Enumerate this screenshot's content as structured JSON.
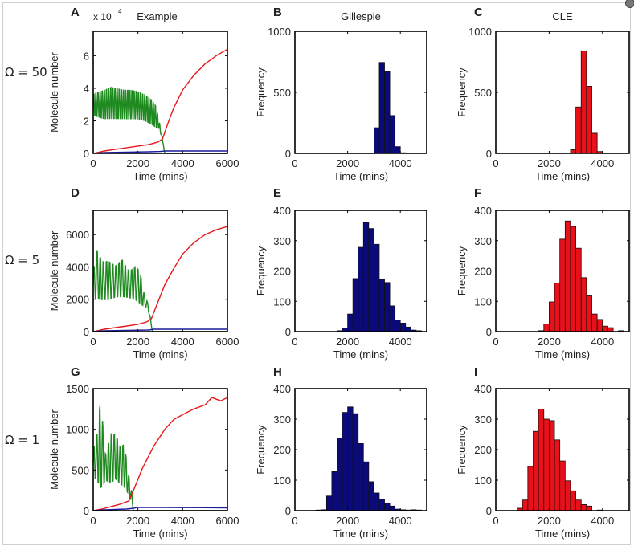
{
  "figure": {
    "row_labels": [
      "Ω = 50",
      "Ω = 5",
      "Ω = 1"
    ],
    "column_titles": [
      "Example",
      "Gillespie",
      "CLE"
    ],
    "colors": {
      "red": "#e41a1c",
      "green": "#1f8a1f",
      "blue": "#1a1a9c",
      "hist_blue": "#0a0a7a",
      "hist_red": "#e8111a"
    }
  },
  "chart_data": [
    {
      "panel": "A",
      "type": "line",
      "title": "Example",
      "multiplier_label": "x 10",
      "multiplier_exp": "4",
      "xlabel": "Time (mins)",
      "ylabel": "Molecule number",
      "xlim": [
        0,
        6000
      ],
      "ylim": [
        0,
        7.5
      ],
      "xticks": [
        0,
        2000,
        4000,
        6000
      ],
      "yticks": [
        0,
        2,
        4,
        6
      ],
      "xtick_labels": [
        "0",
        "2000",
        "4000",
        "6000"
      ],
      "ytick_labels": [
        "0",
        "2",
        "4",
        "6"
      ],
      "series": [
        {
          "name": "green",
          "color": "#1f8a1f",
          "kind": "oscillating",
          "x": [
            0,
            100,
            300,
            500,
            800,
            1100,
            1400,
            1700,
            2000,
            2300,
            2600,
            2800,
            2950,
            3100,
            3200,
            6000
          ],
          "upper": [
            3.7,
            3.8,
            3.9,
            4.0,
            4.2,
            4.1,
            4.0,
            4.0,
            3.9,
            3.7,
            3.4,
            3.0,
            2.0,
            0.8,
            0.0,
            0.0
          ],
          "lower": [
            2.3,
            2.2,
            2.1,
            2.0,
            2.0,
            2.0,
            2.0,
            2.0,
            2.0,
            1.9,
            1.7,
            1.5,
            1.5,
            0.8,
            0.0,
            0.0
          ],
          "period": 95
        },
        {
          "name": "red",
          "color": "#e41a1c",
          "x": [
            0,
            500,
            1000,
            1500,
            2000,
            2500,
            2900,
            3100,
            3300,
            3600,
            4000,
            4500,
            5000,
            5500,
            6000
          ],
          "y": [
            0.0,
            0.15,
            0.25,
            0.35,
            0.45,
            0.55,
            0.7,
            0.9,
            1.7,
            2.8,
            3.9,
            4.8,
            5.5,
            6.0,
            6.4
          ]
        },
        {
          "name": "blue",
          "color": "#1a1a9c",
          "x": [
            0,
            500,
            1500,
            2500,
            3000,
            3200,
            6000
          ],
          "y": [
            0.0,
            0.05,
            0.08,
            0.1,
            0.12,
            0.15,
            0.15
          ]
        }
      ]
    },
    {
      "panel": "B",
      "type": "bar",
      "title": "Gillespie",
      "xlabel": "Time (mins)",
      "ylabel": "Frequency",
      "xlim": [
        0,
        5000
      ],
      "ylim": [
        0,
        1000
      ],
      "xticks": [
        0,
        2000,
        4000
      ],
      "yticks": [
        0,
        500,
        1000
      ],
      "xtick_labels": [
        "0",
        "2000",
        "4000"
      ],
      "ytick_labels": [
        "0",
        "500",
        "1000"
      ],
      "bin_width": 200,
      "bin_start": 0,
      "values": [
        0,
        0,
        0,
        0,
        0,
        0,
        0,
        0,
        0,
        0,
        0,
        0,
        0,
        0,
        2,
        210,
        745,
        670,
        310,
        55,
        5,
        0,
        0,
        0,
        0
      ],
      "color": "#0a0a7a"
    },
    {
      "panel": "C",
      "type": "bar",
      "title": "CLE",
      "xlabel": "Time (mins)",
      "ylabel": "Frequency",
      "xlim": [
        0,
        5000
      ],
      "ylim": [
        0,
        1000
      ],
      "xticks": [
        0,
        2000,
        4000
      ],
      "yticks": [
        0,
        500,
        1000
      ],
      "xtick_labels": [
        "0",
        "2000",
        "4000"
      ],
      "ytick_labels": [
        "0",
        "500",
        "1000"
      ],
      "bin_width": 200,
      "bin_start": 0,
      "values": [
        0,
        0,
        0,
        0,
        0,
        0,
        0,
        0,
        0,
        0,
        0,
        0,
        0,
        0,
        30,
        380,
        840,
        550,
        165,
        15,
        0,
        0,
        0,
        0,
        0
      ],
      "color": "#e8111a"
    },
    {
      "panel": "D",
      "type": "line",
      "xlabel": "Time (mins)",
      "ylabel": "Molecule number",
      "xlim": [
        0,
        6000
      ],
      "ylim": [
        0,
        7500
      ],
      "xticks": [
        0,
        2000,
        4000,
        6000
      ],
      "yticks": [
        0,
        2000,
        4000,
        6000
      ],
      "xtick_labels": [
        "0",
        "2000",
        "4000",
        "6000"
      ],
      "ytick_labels": [
        "0",
        "2000",
        "4000",
        "6000"
      ],
      "series": [
        {
          "name": "green",
          "color": "#1f8a1f",
          "kind": "oscillating",
          "x": [
            0,
            150,
            400,
            700,
            1000,
            1300,
            1600,
            1900,
            2100,
            2300,
            2450,
            2650,
            6000
          ],
          "upper": [
            3700,
            5300,
            4500,
            4500,
            4200,
            4600,
            3800,
            4200,
            3800,
            2200,
            1800,
            0,
            0
          ],
          "lower": [
            2000,
            1800,
            1800,
            1800,
            2000,
            2000,
            2000,
            1800,
            1600,
            1500,
            1400,
            0,
            0
          ],
          "period": 140
        },
        {
          "name": "red",
          "color": "#e41a1c",
          "x": [
            0,
            500,
            1000,
            1500,
            2000,
            2400,
            2600,
            2800,
            3200,
            3600,
            4000,
            4500,
            5000,
            5500,
            6000
          ],
          "y": [
            0,
            150,
            250,
            350,
            450,
            600,
            800,
            1500,
            2900,
            3900,
            4800,
            5500,
            6000,
            6300,
            6500
          ]
        },
        {
          "name": "blue",
          "color": "#1a1a9c",
          "x": [
            0,
            500,
            1500,
            2500,
            2700,
            6000
          ],
          "y": [
            0,
            50,
            80,
            100,
            150,
            150
          ]
        }
      ]
    },
    {
      "panel": "E",
      "type": "bar",
      "xlabel": "Time (mins)",
      "ylabel": "Frequency",
      "xlim": [
        0,
        5000
      ],
      "ylim": [
        0,
        400
      ],
      "xticks": [
        0,
        2000,
        4000
      ],
      "yticks": [
        0,
        100,
        200,
        300,
        400
      ],
      "xtick_labels": [
        "0",
        "2000",
        "4000"
      ],
      "ytick_labels": [
        "0",
        "100",
        "200",
        "300",
        "400"
      ],
      "bin_width": 200,
      "bin_start": 0,
      "values": [
        0,
        0,
        0,
        0,
        0,
        0,
        0,
        0,
        3,
        12,
        58,
        175,
        278,
        360,
        340,
        288,
        172,
        162,
        85,
        38,
        28,
        15,
        5,
        3,
        0
      ],
      "color": "#0a0a7a"
    },
    {
      "panel": "F",
      "type": "bar",
      "xlabel": "Time (mins)",
      "ylabel": "Frequency",
      "xlim": [
        0,
        5000
      ],
      "ylim": [
        0,
        400
      ],
      "xticks": [
        0,
        2000,
        4000
      ],
      "yticks": [
        0,
        100,
        200,
        300,
        400
      ],
      "xtick_labels": [
        "0",
        "2000",
        "4000"
      ],
      "ytick_labels": [
        "0",
        "100",
        "200",
        "300",
        "400"
      ],
      "bin_width": 200,
      "bin_start": 0,
      "values": [
        0,
        0,
        0,
        0,
        0,
        0,
        0,
        0,
        3,
        25,
        98,
        160,
        305,
        365,
        347,
        275,
        178,
        118,
        58,
        40,
        18,
        13,
        0,
        3,
        0
      ],
      "color": "#e8111a"
    },
    {
      "panel": "G",
      "type": "line",
      "xlabel": "Time (mins)",
      "ylabel": "Molecule number",
      "xlim": [
        0,
        6000
      ],
      "ylim": [
        0,
        1500
      ],
      "xticks": [
        0,
        2000,
        4000,
        6000
      ],
      "yticks": [
        0,
        500,
        1000,
        1500
      ],
      "xtick_labels": [
        "0",
        "2000",
        "4000",
        "6000"
      ],
      "ytick_labels": [
        "0",
        "500",
        "1000",
        "1500"
      ],
      "series": [
        {
          "name": "green",
          "color": "#1f8a1f",
          "kind": "oscillating",
          "x": [
            0,
            150,
            330,
            550,
            800,
            1000,
            1200,
            1400,
            1550,
            1700,
            1800,
            6000
          ],
          "upper": [
            780,
            920,
            1440,
            700,
            990,
            980,
            820,
            850,
            500,
            300,
            0,
            0
          ],
          "lower": [
            380,
            350,
            200,
            350,
            300,
            350,
            300,
            250,
            200,
            100,
            0,
            0
          ],
          "period": 130
        },
        {
          "name": "red",
          "color": "#e41a1c",
          "x": [
            0,
            400,
            800,
            1200,
            1600,
            1800,
            2200,
            2700,
            3200,
            3600,
            4000,
            4500,
            5000,
            5300,
            5700,
            6000
          ],
          "y": [
            0,
            20,
            50,
            80,
            120,
            250,
            520,
            790,
            1000,
            1120,
            1180,
            1250,
            1300,
            1390,
            1350,
            1390
          ]
        },
        {
          "name": "blue",
          "color": "#1a1a9c",
          "x": [
            0,
            500,
            1000,
            1500,
            1800,
            2000,
            6000
          ],
          "y": [
            0,
            10,
            15,
            20,
            30,
            40,
            35
          ]
        }
      ]
    },
    {
      "panel": "H",
      "type": "bar",
      "xlabel": "Time (mins)",
      "ylabel": "Frequency",
      "xlim": [
        0,
        5000
      ],
      "ylim": [
        0,
        400
      ],
      "xticks": [
        0,
        2000,
        4000
      ],
      "yticks": [
        0,
        100,
        200,
        300,
        400
      ],
      "xtick_labels": [
        "0",
        "2000",
        "4000"
      ],
      "ytick_labels": [
        "0",
        "100",
        "200",
        "300",
        "400"
      ],
      "bin_width": 200,
      "bin_start": 0,
      "values": [
        0,
        0,
        0,
        0,
        2,
        3,
        48,
        128,
        238,
        322,
        340,
        318,
        220,
        160,
        95,
        58,
        38,
        25,
        15,
        5,
        3,
        2,
        3,
        2,
        0
      ],
      "color": "#0a0a7a"
    },
    {
      "panel": "I",
      "type": "bar",
      "xlabel": "Time (mins)",
      "ylabel": "Frequency",
      "xlim": [
        0,
        5000
      ],
      "ylim": [
        0,
        400
      ],
      "xticks": [
        0,
        2000,
        4000
      ],
      "yticks": [
        0,
        100,
        200,
        300,
        400
      ],
      "xtick_labels": [
        "0",
        "2000",
        "4000"
      ],
      "ytick_labels": [
        "0",
        "100",
        "200",
        "300",
        "400"
      ],
      "bin_width": 200,
      "bin_start": 0,
      "values": [
        0,
        0,
        0,
        0,
        8,
        35,
        145,
        260,
        333,
        300,
        295,
        232,
        163,
        98,
        65,
        35,
        20,
        15,
        0,
        2,
        0,
        0,
        0,
        0,
        0
      ],
      "color": "#e8111a"
    }
  ]
}
